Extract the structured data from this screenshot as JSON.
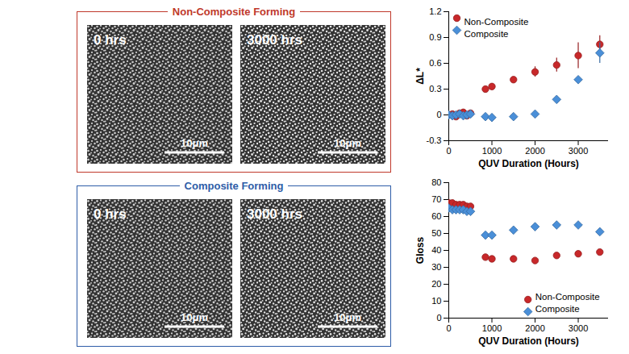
{
  "panels": [
    {
      "title": "Non-Composite Forming",
      "color": "#c0392b",
      "images": [
        {
          "label": "0 hrs",
          "scale_bar": "10μm"
        },
        {
          "label": "3000 hrs",
          "scale_bar": "10μm"
        }
      ]
    },
    {
      "title": "Composite Forming",
      "color": "#2e5da8",
      "images": [
        {
          "label": "0 hrs",
          "scale_bar": "10μm"
        },
        {
          "label": "3000 hrs",
          "scale_bar": "10μm"
        }
      ]
    }
  ],
  "chart_data": [
    {
      "type": "scatter",
      "xlabel": "QUV Duration (Hours)",
      "ylabel": "ΔL*",
      "xlim": [
        0,
        3700
      ],
      "xticks": [
        0,
        1000,
        2000,
        3000
      ],
      "ylim": [
        -0.3,
        1.2
      ],
      "yticks": [
        {
          "value": -0.3,
          "label": "-0.3"
        },
        0,
        0.3,
        0.6,
        0.9,
        1.2
      ],
      "legend": "upper left",
      "series": [
        {
          "name": "Non-Composite",
          "color": "#c8282a",
          "marker": "circle",
          "x": [
            0,
            84,
            168,
            252,
            336,
            420,
            504,
            850,
            1000,
            1500,
            2000,
            2500,
            3000,
            3500
          ],
          "values": [
            0,
            0.01,
            -0.02,
            0.02,
            0.03,
            -0.01,
            0.02,
            0.3,
            0.33,
            0.41,
            0.5,
            0.58,
            0.69,
            0.82
          ],
          "errors": [
            null,
            null,
            null,
            null,
            null,
            null,
            null,
            0.02,
            0.02,
            0.02,
            0.06,
            0.08,
            0.15,
            0.1
          ]
        },
        {
          "name": "Composite",
          "color": "#4a8fd8",
          "marker": "diamond",
          "x": [
            0,
            84,
            168,
            252,
            336,
            420,
            504,
            850,
            1000,
            1500,
            2000,
            2500,
            3000,
            3500
          ],
          "values": [
            0,
            -0.01,
            0,
            0.01,
            -0.01,
            0,
            0.01,
            -0.02,
            -0.03,
            -0.02,
            0.01,
            0.18,
            0.41,
            0.72
          ],
          "errors": [
            null,
            null,
            null,
            null,
            null,
            null,
            null,
            null,
            null,
            null,
            null,
            null,
            0.02,
            0.12
          ]
        }
      ]
    },
    {
      "type": "scatter",
      "xlabel": "QUV Duration (Hours)",
      "ylabel": "Gloss",
      "xlim": [
        0,
        3700
      ],
      "xticks": [
        0,
        1000,
        2000,
        3000
      ],
      "ylim": [
        0,
        80
      ],
      "yticks": [
        0,
        10,
        20,
        30,
        40,
        50,
        60,
        70,
        80
      ],
      "legend": "lower right",
      "series": [
        {
          "name": "Non-Composite",
          "color": "#c8282a",
          "marker": "circle",
          "x": [
            0,
            84,
            168,
            252,
            336,
            420,
            504,
            850,
            1000,
            1500,
            2000,
            2500,
            3000,
            3500
          ],
          "values": [
            68,
            68,
            67,
            67,
            67,
            66,
            66,
            36,
            35,
            35,
            34,
            37,
            38,
            39
          ]
        },
        {
          "name": "Composite",
          "color": "#4a8fd8",
          "marker": "diamond",
          "x": [
            0,
            84,
            168,
            252,
            336,
            420,
            504,
            850,
            1000,
            1500,
            2000,
            2500,
            3000,
            3500
          ],
          "values": [
            65,
            64,
            64,
            64,
            64,
            63,
            63,
            49,
            49,
            52,
            54,
            55,
            55,
            51
          ],
          "errors": [
            null,
            null,
            null,
            null,
            null,
            null,
            null,
            null,
            null,
            null,
            null,
            null,
            null,
            2
          ]
        }
      ]
    }
  ]
}
